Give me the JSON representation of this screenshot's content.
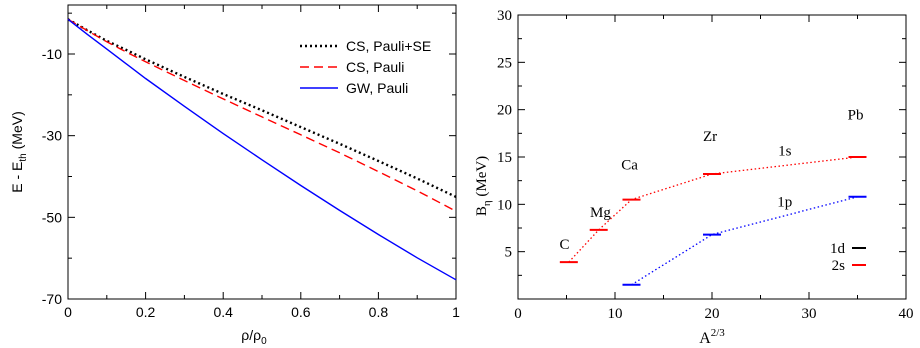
{
  "chart_data": [
    {
      "type": "line",
      "xlabel": "ρ/ρ0",
      "ylabel": "E - Eth (MeV)",
      "xlim": [
        0,
        1
      ],
      "ylim": [
        -70,
        2
      ],
      "xticks": [
        "0",
        "0.2",
        "0.4",
        "0.6",
        "0.8",
        "1"
      ],
      "yticks": [
        "-10",
        "-30",
        "-50",
        "-70"
      ],
      "grid": false,
      "legend_position": "top-right",
      "legend": [
        "CS, Pauli+SE",
        "CS, Pauli",
        "GW, Pauli"
      ],
      "series": [
        {
          "name": "CS, Pauli+SE",
          "color": "#000000",
          "style": "dotted",
          "x": [
            0,
            0.05,
            0.1,
            0.15,
            0.2,
            0.3,
            0.4,
            0.5,
            0.6,
            0.7,
            0.8,
            0.9,
            1.0
          ],
          "y": [
            -1.5,
            -4.2,
            -6.8,
            -9.0,
            -11.3,
            -15.6,
            -19.8,
            -23.8,
            -27.9,
            -32.0,
            -36.2,
            -40.5,
            -45.0
          ]
        },
        {
          "name": "CS, Pauli",
          "color": "#ff0000",
          "style": "dashed",
          "x": [
            0,
            0.05,
            0.1,
            0.15,
            0.2,
            0.3,
            0.4,
            0.5,
            0.6,
            0.7,
            0.8,
            0.9,
            1.0
          ],
          "y": [
            -1.5,
            -4.3,
            -7.0,
            -9.5,
            -11.9,
            -16.5,
            -21.0,
            -25.4,
            -29.8,
            -34.2,
            -38.8,
            -43.5,
            -48.5
          ]
        },
        {
          "name": "GW, Pauli",
          "color": "#0000ff",
          "style": "solid",
          "x": [
            0,
            0.05,
            0.1,
            0.15,
            0.2,
            0.3,
            0.4,
            0.5,
            0.6,
            0.7,
            0.8,
            0.9,
            1.0
          ],
          "y": [
            -1.5,
            -5.2,
            -8.8,
            -12.4,
            -16.0,
            -22.8,
            -29.5,
            -35.9,
            -42.2,
            -48.3,
            -54.2,
            -59.9,
            -65.3
          ]
        }
      ]
    },
    {
      "type": "scatter",
      "xlabel": "A",
      "xlabel_sup": "2/3",
      "ylabel": "Bη (MeV)",
      "xlim": [
        0,
        40
      ],
      "ylim": [
        0,
        30
      ],
      "xticks": [
        "0",
        "10",
        "20",
        "30",
        "40"
      ],
      "yticks": [
        "5",
        "10",
        "15",
        "20",
        "25",
        "30"
      ],
      "grid": false,
      "legend_position": "bottom-right",
      "legend": [
        {
          "label": "1d",
          "color": "#000000"
        },
        {
          "label": "2s",
          "color": "#ff0000"
        }
      ],
      "series": [
        {
          "name": "1s",
          "color": "#ff0000",
          "points": [
            {
              "x": 5.24,
              "y": 3.9
            },
            {
              "x": 8.32,
              "y": 7.3
            },
            {
              "x": 11.7,
              "y": 10.5
            },
            {
              "x": 20.0,
              "y": 13.2
            },
            {
              "x": 35.0,
              "y": 15.0
            }
          ]
        },
        {
          "name": "1p",
          "color": "#0000ff",
          "points": [
            {
              "x": 11.7,
              "y": 1.5
            },
            {
              "x": 20.0,
              "y": 6.8
            },
            {
              "x": 35.0,
              "y": 10.8
            }
          ]
        }
      ],
      "annotations": [
        {
          "text": "C",
          "x": 4.8,
          "y": 5.8
        },
        {
          "text": "Mg",
          "x": 8.5,
          "y": 9.2
        },
        {
          "text": "Ca",
          "x": 11.5,
          "y": 14.2
        },
        {
          "text": "Zr",
          "x": 19.8,
          "y": 17.2
        },
        {
          "text": "Pb",
          "x": 34.8,
          "y": 19.5
        },
        {
          "text": "1s",
          "x": 27.5,
          "y": 15.7
        },
        {
          "text": "1p",
          "x": 27.5,
          "y": 10.3
        }
      ]
    }
  ]
}
